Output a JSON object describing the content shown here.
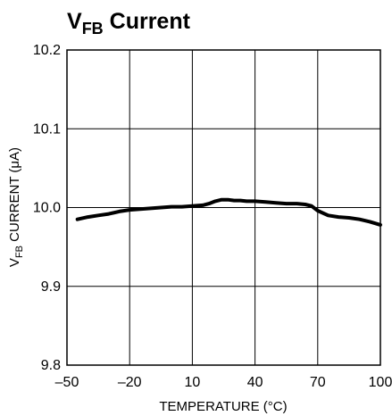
{
  "chart_data": {
    "type": "line",
    "title": {
      "main": "V",
      "sub": "FB",
      "rest": " Current"
    },
    "xlabel": "TEMPERATURE (°C)",
    "ylabel": {
      "main": "V",
      "sub": "FB",
      "rest": " CURRENT (μA)"
    },
    "xlim": [
      -50,
      100
    ],
    "ylim": [
      9.8,
      10.2
    ],
    "x_ticks": [
      "–50",
      "–20",
      "10",
      "40",
      "70",
      "100"
    ],
    "x_tick_values": [
      -50,
      -20,
      10,
      40,
      70,
      100
    ],
    "y_ticks": [
      "9.8",
      "9.9",
      "10.0",
      "10.1",
      "10.2"
    ],
    "y_tick_values": [
      9.8,
      9.9,
      10.0,
      10.1,
      10.2
    ],
    "grid": true,
    "series": [
      {
        "x": [
          -45,
          -40,
          -35,
          -30,
          -25,
          -20,
          -15,
          -10,
          -5,
          0,
          5,
          10,
          15,
          18,
          21,
          24,
          27,
          30,
          33,
          36,
          40,
          45,
          50,
          55,
          60,
          64,
          67,
          70,
          75,
          80,
          85,
          90,
          95,
          100
        ],
        "values": [
          9.985,
          9.988,
          9.99,
          9.992,
          9.995,
          9.997,
          9.998,
          9.999,
          10.0,
          10.001,
          10.001,
          10.002,
          10.003,
          10.005,
          10.008,
          10.01,
          10.01,
          10.009,
          10.009,
          10.008,
          10.008,
          10.007,
          10.006,
          10.005,
          10.005,
          10.004,
          10.002,
          9.996,
          9.99,
          9.988,
          9.987,
          9.985,
          9.982,
          9.978
        ]
      }
    ]
  }
}
